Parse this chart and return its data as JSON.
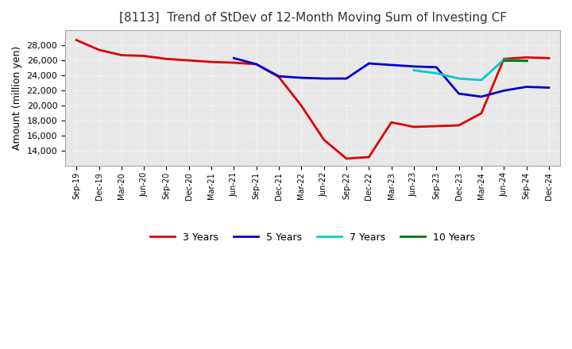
{
  "title": "[8113]  Trend of StDev of 12-Month Moving Sum of Investing CF",
  "ylabel": "Amount (million yen)",
  "background_color": "#ffffff",
  "plot_background": "#e8e8e8",
  "grid_color": "#ffffff",
  "title_fontsize": 11,
  "ylabel_fontsize": 9,
  "x_labels": [
    "Sep-19",
    "Dec-19",
    "Mar-20",
    "Jun-20",
    "Sep-20",
    "Dec-20",
    "Mar-21",
    "Jun-21",
    "Sep-21",
    "Dec-21",
    "Mar-22",
    "Jun-22",
    "Sep-22",
    "Dec-22",
    "Mar-23",
    "Jun-23",
    "Sep-23",
    "Dec-23",
    "Mar-24",
    "Jun-24",
    "Sep-24",
    "Dec-24"
  ],
  "series_3y": [
    28700,
    27400,
    26700,
    26600,
    26200,
    26000,
    25800,
    25700,
    25500,
    23800,
    20000,
    15500,
    13000,
    13200,
    17800,
    17200,
    17300,
    17400,
    19000,
    26200,
    26400,
    26300
  ],
  "series_5y": [
    null,
    null,
    null,
    null,
    null,
    null,
    null,
    26300,
    25500,
    23900,
    23700,
    23600,
    23600,
    25600,
    25400,
    25200,
    25100,
    21600,
    21200,
    22000,
    22500,
    22400
  ],
  "series_7y": [
    null,
    null,
    null,
    null,
    null,
    null,
    null,
    null,
    null,
    null,
    null,
    null,
    null,
    null,
    null,
    24700,
    24300,
    23600,
    23400,
    26100,
    25900,
    null
  ],
  "series_10y": [
    null,
    null,
    null,
    null,
    null,
    null,
    null,
    null,
    null,
    null,
    null,
    null,
    null,
    null,
    null,
    null,
    null,
    null,
    null,
    26000,
    26000,
    null
  ],
  "color_3y": "#dd0000",
  "color_5y": "#0000cc",
  "color_7y": "#00cccc",
  "color_10y": "#007700",
  "ylim": [
    12000,
    30000
  ],
  "yticks": [
    14000,
    16000,
    18000,
    20000,
    22000,
    24000,
    26000,
    28000
  ],
  "legend_labels": [
    "3 Years",
    "5 Years",
    "7 Years",
    "10 Years"
  ],
  "legend_colors": [
    "#dd0000",
    "#0000cc",
    "#00cccc",
    "#007700"
  ]
}
